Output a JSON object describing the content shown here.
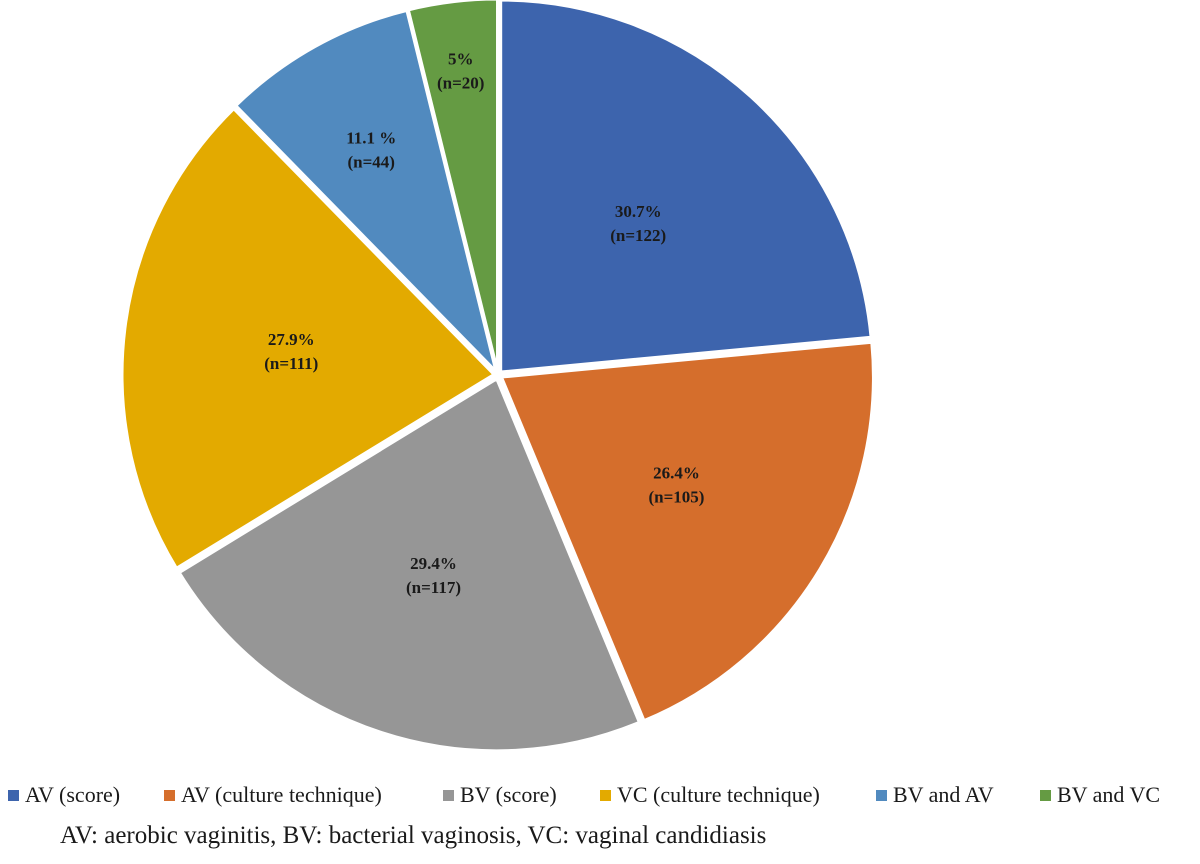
{
  "chart_data": {
    "type": "pie",
    "title": "",
    "slices": [
      {
        "name": "AV (score)",
        "percent_label": "30.7%",
        "n_label": "(n=122)",
        "value": 122,
        "color": "#3d64ad"
      },
      {
        "name": "AV (culture technique)",
        "percent_label": "26.4%",
        "n_label": "(n=105)",
        "value": 105,
        "color": "#d56e2c"
      },
      {
        "name": "BV (score)",
        "percent_label": "29.4%",
        "n_label": "(n=117)",
        "value": 117,
        "color": "#969696"
      },
      {
        "name": "VC (culture technique)",
        "percent_label": "27.9%",
        "n_label": "(n=111)",
        "value": 111,
        "color": "#e3aa00"
      },
      {
        "name": "BV and AV",
        "percent_label": "11.1 %",
        "n_label": "(n=44)",
        "value": 44,
        "color": "#518abf"
      },
      {
        "name": "BV and VC",
        "percent_label": "5%",
        "n_label": "(n=20)",
        "value": 20,
        "color": "#659b43"
      }
    ],
    "legend_position": "bottom"
  },
  "footnote": "AV: aerobic vaginitis, BV: bacterial vaginosis, VC: vaginal candidiasis"
}
